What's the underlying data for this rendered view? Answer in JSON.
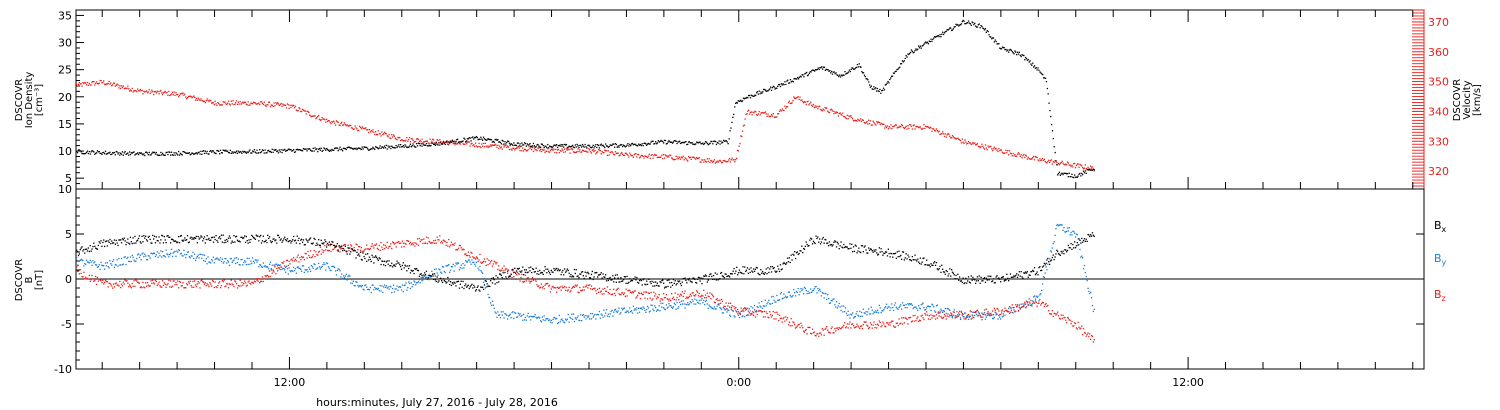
{
  "x_axis": {
    "label": "hours:minutes, July 27, 2016 - July 28, 2016",
    "tick_labels": [
      {
        "hour": 12,
        "text": "12:00"
      },
      {
        "hour": 24,
        "text": "0:00"
      },
      {
        "hour": 36,
        "text": "12:00"
      }
    ],
    "range_hours": [
      6.3,
      42.3
    ]
  },
  "panels": {
    "density": {
      "left_label": [
        "DSCOVR",
        "Ion Density",
        "[cm⁻³]"
      ],
      "right_label": [
        "DSCOVR",
        "Velocity",
        "[km/s]"
      ]
    },
    "field": {
      "left_label": [
        "DSCOVR",
        "B",
        "[nT]"
      ],
      "legend": [
        {
          "text": "B",
          "sub": "x",
          "color": "#000000"
        },
        {
          "text": "B",
          "sub": "y",
          "color": "#1a7ed8"
        },
        {
          "text": "B",
          "sub": "z",
          "color": "#e8201c"
        }
      ]
    }
  },
  "colors": {
    "black": "#000000",
    "blue": "#1a7ed8",
    "red": "#e8201c"
  },
  "chart_data": [
    {
      "type": "scatter",
      "title": "",
      "xlabel": "hours:minutes, July 27, 2016 - July 28, 2016",
      "ylabel": "DSCOVR Ion Density [cm⁻³]",
      "y2label": "DSCOVR Velocity [km/s]",
      "xlim": [
        6.3,
        42.3
      ],
      "ylim": [
        3,
        36
      ],
      "y2lim": [
        314,
        374
      ],
      "yticks": [
        5,
        10,
        15,
        20,
        25,
        30,
        35
      ],
      "y2ticks": [
        320,
        330,
        340,
        350,
        360,
        370
      ],
      "series": [
        {
          "name": "Ion Density",
          "axis": "left",
          "color": "#000000",
          "x": [
            6.3,
            7,
            8,
            9,
            10,
            11,
            12,
            13,
            14,
            15,
            16,
            17,
            18,
            19,
            20,
            21,
            22,
            23,
            23.7,
            23.9,
            24.2,
            25,
            25.7,
            26.2,
            26.7,
            27.2,
            27.5,
            27.8,
            28.5,
            29,
            29.5,
            30,
            30.5,
            31,
            31.5,
            32,
            32.2,
            32.5,
            33,
            33.5
          ],
          "y": [
            10,
            9.8,
            9.6,
            9.7,
            9.9,
            10,
            10.2,
            10.4,
            10.6,
            11,
            11.5,
            12.5,
            11.4,
            11,
            11,
            11.2,
            11.8,
            11.5,
            11.8,
            19,
            20,
            22,
            24,
            25.5,
            24,
            26,
            22,
            21,
            28,
            30,
            32,
            34,
            33,
            29,
            28,
            25,
            23,
            6,
            5.5,
            7
          ]
        },
        {
          "name": "Velocity",
          "axis": "right",
          "color": "#e8201c",
          "x": [
            6.3,
            7,
            8,
            9,
            10,
            11,
            12,
            13,
            14,
            15,
            16,
            17,
            18,
            19,
            20,
            21,
            22,
            23,
            23.5,
            23.9,
            24.2,
            25,
            25.5,
            26,
            26.5,
            27,
            28,
            29,
            30,
            31,
            32,
            33,
            33.5
          ],
          "y": [
            349,
            350,
            347,
            346,
            343,
            343,
            342,
            337,
            334,
            331,
            330,
            329,
            328,
            327,
            327,
            325.5,
            325,
            324,
            323.5,
            324,
            340,
            339,
            345,
            342,
            340,
            338,
            335,
            335,
            330,
            327,
            324,
            322,
            321
          ]
        }
      ]
    },
    {
      "type": "scatter",
      "title": "",
      "xlabel": "hours:minutes, July 27, 2016 - July 28, 2016",
      "ylabel": "DSCOVR B [nT]",
      "xlim": [
        6.3,
        42.3
      ],
      "ylim": [
        -10,
        10
      ],
      "yticks": [
        -10,
        -5,
        0,
        5,
        10
      ],
      "zero_line": true,
      "series": [
        {
          "name": "Bx",
          "color": "#000000",
          "x": [
            6.3,
            7,
            8,
            9,
            10,
            11,
            12,
            13,
            14,
            15,
            16,
            17,
            18,
            19,
            20,
            21,
            22,
            23,
            24,
            25,
            26,
            27,
            28,
            29,
            30,
            31,
            32,
            32.5,
            33,
            33.5
          ],
          "y": [
            3,
            4,
            4.5,
            4.5,
            4.5,
            4.5,
            4.5,
            4,
            2.5,
            1.5,
            0,
            -1,
            1,
            1,
            0.5,
            0,
            -0.5,
            0,
            1,
            1,
            4.5,
            3.5,
            3,
            2,
            0,
            0,
            1,
            3,
            4,
            5
          ]
        },
        {
          "name": "By",
          "color": "#1a7ed8",
          "x": [
            6.3,
            7,
            8,
            9,
            10,
            11,
            12,
            13,
            14,
            15,
            16,
            17,
            17.5,
            18,
            19,
            20,
            21,
            22,
            23,
            24,
            25,
            26,
            27,
            28,
            29,
            30,
            31,
            32,
            32.5,
            33,
            33.5
          ],
          "y": [
            2,
            1.5,
            2.5,
            3,
            2,
            2,
            1,
            1.5,
            -1,
            -1,
            1,
            2,
            -4,
            -4,
            -4.5,
            -4,
            -3.5,
            -3,
            -2.5,
            -4,
            -2,
            -1,
            -4,
            -3,
            -3,
            -4,
            -4,
            -2,
            6,
            5,
            -4
          ]
        },
        {
          "name": "Bz",
          "color": "#e8201c",
          "x": [
            6.3,
            7,
            8,
            9,
            10,
            11,
            12,
            13,
            14,
            15,
            16,
            17,
            18,
            19,
            20,
            21,
            22,
            23,
            24,
            25,
            26,
            27,
            28,
            29,
            30,
            31,
            32,
            32.5,
            33,
            33.5
          ],
          "y": [
            1,
            -0.5,
            -0.5,
            -0.5,
            -0.5,
            -0.5,
            2,
            3.5,
            3.5,
            4,
            4.5,
            2.5,
            0.5,
            -1,
            -1,
            -1.5,
            -2,
            -1.5,
            -3.5,
            -4,
            -6,
            -5,
            -5,
            -4,
            -4,
            -3.5,
            -2.5,
            -4,
            -5,
            -7
          ]
        }
      ]
    }
  ]
}
